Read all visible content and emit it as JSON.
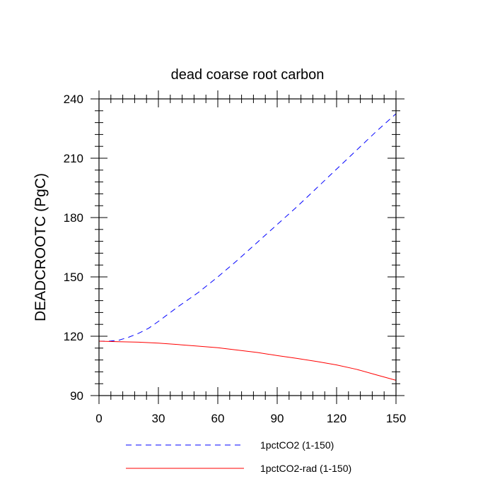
{
  "chart_data": {
    "type": "line",
    "title": "dead coarse root carbon",
    "xlabel": "",
    "ylabel": "DEADCROOTC  (PgC)",
    "xlim": [
      0,
      150
    ],
    "ylim": [
      90,
      240
    ],
    "xticks": [
      0,
      30,
      60,
      90,
      120,
      150
    ],
    "yticks": [
      90,
      120,
      150,
      180,
      210,
      240
    ],
    "grid": false,
    "legend_position": "bottom",
    "series": [
      {
        "name": "1pctCO2 (1-150)",
        "color": "#0000ff",
        "dash": "dashed",
        "x": [
          0,
          5,
          10,
          15,
          20,
          25,
          30,
          40,
          50,
          60,
          70,
          80,
          90,
          100,
          110,
          120,
          130,
          140,
          150
        ],
        "y": [
          117.5,
          117.5,
          118,
          119.5,
          121.5,
          124,
          127.5,
          135,
          142,
          150,
          158.5,
          167.5,
          176.5,
          185.5,
          195,
          204.5,
          214,
          223.5,
          232.5
        ]
      },
      {
        "name": "1pctCO2-rad (1-150)",
        "color": "#ff0000",
        "dash": "solid",
        "x": [
          0,
          10,
          20,
          30,
          40,
          50,
          60,
          70,
          80,
          90,
          100,
          110,
          120,
          130,
          140,
          150
        ],
        "y": [
          117.5,
          117.2,
          117,
          116.5,
          115.8,
          115,
          114.2,
          113,
          111.8,
          110.2,
          108.8,
          107.2,
          105.5,
          103.3,
          100.5,
          97.7
        ]
      }
    ]
  }
}
